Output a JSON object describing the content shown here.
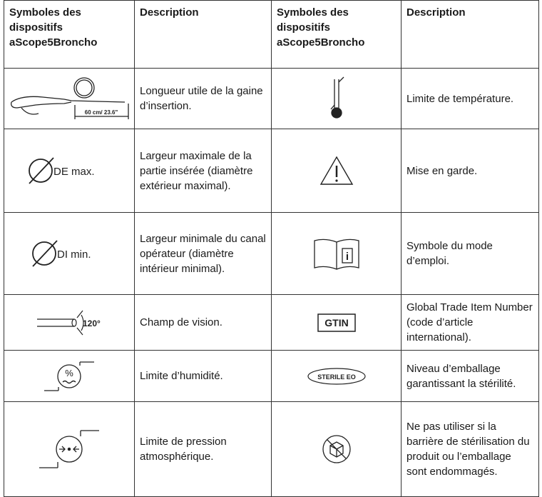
{
  "table": {
    "header": [
      "Symboles des dispositifs aScope5Broncho",
      "Description",
      "Symboles des dispositifs aScope5Broncho",
      "Description"
    ],
    "rows": [
      {
        "left_symbol": "60 cm/ 23.6\"",
        "left_description": "Longueur utile de la gaine d’insertion.",
        "right_description": "Limite de température."
      },
      {
        "left_symbol": "DE max.",
        "left_description": "Largeur maximale de la partie insérée (diamètre extérieur maximal).",
        "right_description": "Mise en garde."
      },
      {
        "left_symbol": "DI min.",
        "left_description": "Largeur minimale du canal opérateur (diamètre intérieur minimal).",
        "right_description": "Symbole du mode d’emploi."
      },
      {
        "left_symbol": "120°",
        "left_description": "Champ de vision.",
        "right_symbol": "GTIN",
        "right_description": "Global Trade Item Number (code d’article international)."
      },
      {
        "left_symbol": "%",
        "left_description": "Limite d’humidité.",
        "right_symbol": "STERILE EO",
        "right_description": "Niveau d’emballage garantissant la stérilité."
      },
      {
        "left_description": "Limite de pression atmosphérique.",
        "right_description": "Ne pas utiliser si la barrière de stérilisation du produit ou l’emballage sont endommagés."
      }
    ]
  }
}
